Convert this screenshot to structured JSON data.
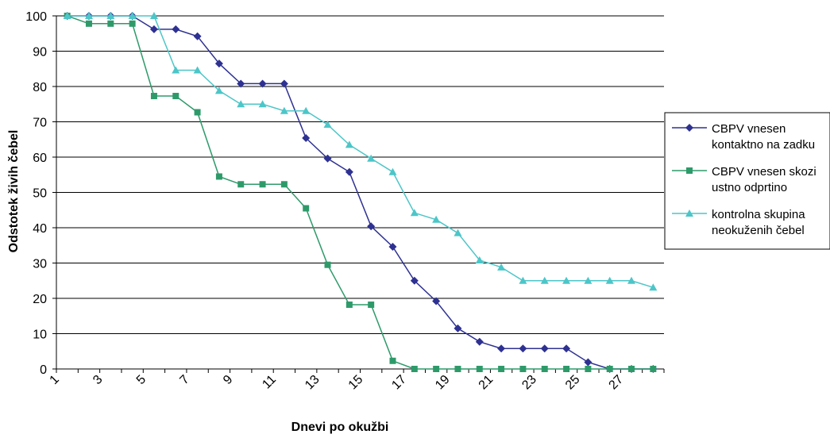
{
  "chart_data": {
    "type": "line",
    "title": "",
    "xlabel": "Dnevi po okužbi",
    "ylabel": "Odstotek živih čebel",
    "ylim": [
      0,
      100
    ],
    "yticks": [
      "0",
      "10",
      "20",
      "30",
      "40",
      "50",
      "60",
      "70",
      "80",
      "90",
      "100"
    ],
    "xticks": [
      "1",
      "3",
      "5",
      "7",
      "9",
      "11",
      "13",
      "15",
      "17",
      "19",
      "21",
      "23",
      "25",
      "27"
    ],
    "grid": "horizontal",
    "legend_position": "right",
    "x": [
      1,
      2,
      3,
      4,
      5,
      6,
      7,
      8,
      9,
      10,
      11,
      12,
      13,
      14,
      15,
      16,
      17,
      18,
      19,
      20,
      21,
      22,
      23,
      24,
      25,
      26,
      27,
      28
    ],
    "series": [
      {
        "name_lines": [
          "CBPV vnesen",
          "kontaktno na zadku"
        ],
        "color": "#2e3192",
        "marker": "diamond",
        "values": [
          100,
          100,
          100,
          100,
          96.2,
          96.2,
          94.2,
          86.5,
          80.8,
          80.8,
          80.8,
          65.4,
          59.6,
          55.8,
          40.4,
          34.6,
          25,
          19.2,
          11.5,
          7.7,
          5.8,
          5.8,
          5.8,
          5.8,
          1.9,
          0,
          0,
          0
        ]
      },
      {
        "name_lines": [
          "CBPV vnesen skozi",
          "ustno odprtino"
        ],
        "color": "#2e9a6a",
        "marker": "square",
        "values": [
          100,
          97.8,
          97.8,
          97.8,
          77.3,
          77.3,
          72.7,
          54.5,
          52.3,
          52.3,
          52.3,
          45.5,
          29.5,
          18.2,
          18.2,
          2.3,
          0,
          0,
          0,
          0,
          0,
          0,
          0,
          0,
          0,
          0,
          0,
          0
        ]
      },
      {
        "name_lines": [
          "kontrolna skupina",
          "neokuženih čebel"
        ],
        "color": "#4cc6c8",
        "marker": "triangle",
        "values": [
          100,
          100,
          100,
          100,
          100,
          84.6,
          84.6,
          78.8,
          75,
          75,
          73.1,
          73.1,
          69.2,
          63.5,
          59.6,
          55.8,
          44.2,
          42.3,
          38.5,
          30.8,
          28.8,
          25,
          25,
          25,
          25,
          25,
          25,
          23.1
        ]
      }
    ]
  }
}
